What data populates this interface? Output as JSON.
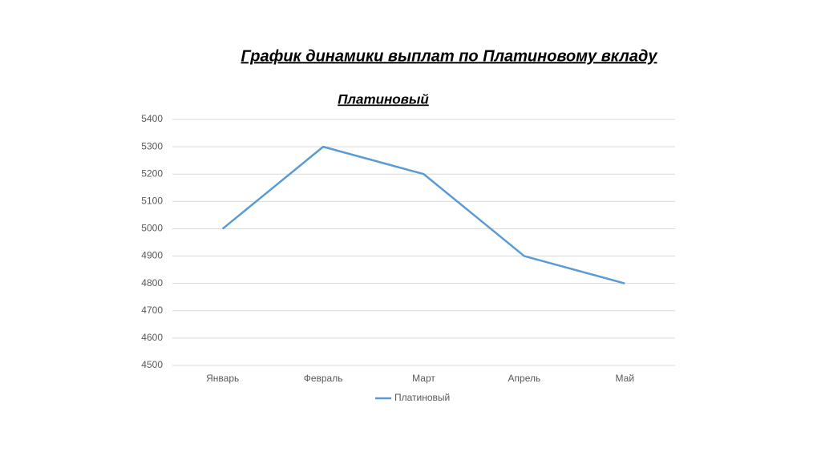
{
  "slide_title": "График динамики выплат по Платиновому вкладу",
  "chart_data": {
    "type": "line",
    "title": "Платиновый",
    "categories": [
      "Январь",
      "Февраль",
      "Март",
      "Апрель",
      "Май"
    ],
    "series": [
      {
        "name": "Платиновый",
        "color": "#5b9bd5",
        "values": [
          5000,
          5300,
          5200,
          4900,
          4800
        ]
      }
    ],
    "ylim": [
      4500,
      5400
    ],
    "yticks": [
      4500,
      4600,
      4700,
      4800,
      4900,
      5000,
      5100,
      5200,
      5300,
      5400
    ],
    "grid": true,
    "legend": "bottom"
  }
}
